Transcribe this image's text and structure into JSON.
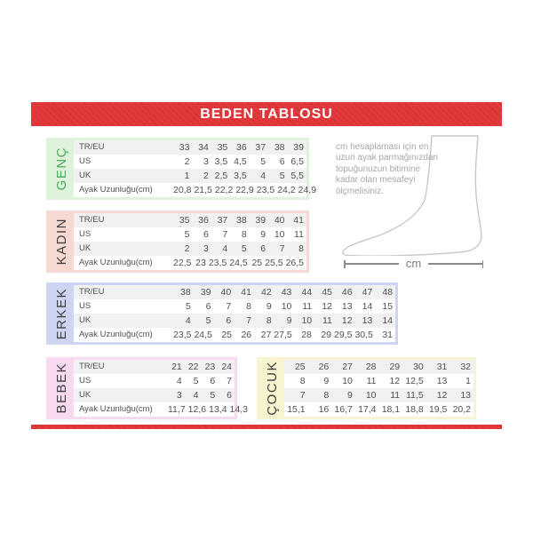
{
  "header": {
    "title": "BEDEN TABLOSU",
    "bar_color": "#e2393d"
  },
  "colors": {
    "row_stripe": "#f1f1f1",
    "table_text": "#4f4f4f",
    "genc_accent": "#def2dc",
    "genc_label": "#4bab5b",
    "kadin_accent": "#f8d9d2",
    "erkek_accent": "#cdd5f2",
    "bebek_accent": "#f7d9f0",
    "cocuk_accent": "#f9f4d0",
    "dark_label": "#3f3f3f"
  },
  "info": {
    "text": "cm hesaplaması için en\nuzun ayak parmağınızdan\ntopuğunuzun bitimine\nkadar olan mesafeyi\nölçmelisiniz.",
    "unit_label": "cm",
    "foot_icon": "foot-outline-icon"
  },
  "tables": {
    "genc": {
      "label": "GENÇ",
      "accent": "#def2dc",
      "label_color": "#4bab5b",
      "rows": [
        {
          "label": "TR/EU",
          "values": [
            "33",
            "34",
            "35",
            "36",
            "37",
            "38",
            "39"
          ]
        },
        {
          "label": "US",
          "values": [
            "2",
            "3",
            "3,5",
            "4,5",
            "5",
            "6",
            "6,5"
          ]
        },
        {
          "label": "UK",
          "values": [
            "1",
            "2",
            "2,5",
            "3,5",
            "4",
            "5",
            "5,5"
          ]
        },
        {
          "label": "Ayak Uzunluğu(cm)",
          "values": [
            "20,8",
            "21,5",
            "22,2",
            "22,9",
            "23,5",
            "24,2",
            "24,9"
          ]
        }
      ]
    },
    "kadin": {
      "label": "KADIN",
      "accent": "#f8d9d2",
      "label_color": "#3f3f3f",
      "rows": [
        {
          "label": "TR/EU",
          "values": [
            "35",
            "36",
            "37",
            "38",
            "39",
            "40",
            "41"
          ]
        },
        {
          "label": "US",
          "values": [
            "5",
            "6",
            "7",
            "8",
            "9",
            "10",
            "11"
          ]
        },
        {
          "label": "UK",
          "values": [
            "2",
            "3",
            "4",
            "5",
            "6",
            "7",
            "8"
          ]
        },
        {
          "label": "Ayak Uzunluğu(cm)",
          "values": [
            "22,5",
            "23",
            "23,5",
            "24,5",
            "25",
            "25,5",
            "26,5"
          ]
        }
      ]
    },
    "erkek": {
      "label": "ERKEK",
      "accent": "#cdd5f2",
      "label_color": "#3f3f3f",
      "rows": [
        {
          "label": "TR/EU",
          "values": [
            "38",
            "39",
            "40",
            "41",
            "42",
            "43",
            "44",
            "45",
            "46",
            "47",
            "48"
          ]
        },
        {
          "label": "US",
          "values": [
            "5",
            "6",
            "7",
            "8",
            "9",
            "10",
            "11",
            "12",
            "13",
            "14",
            "15"
          ]
        },
        {
          "label": "UK",
          "values": [
            "4",
            "5",
            "6",
            "7",
            "8",
            "9",
            "10",
            "11",
            "12",
            "13",
            "14"
          ]
        },
        {
          "label": "Ayak Uzunluğu(cm)",
          "values": [
            "23,5",
            "24,5",
            "25",
            "26",
            "27",
            "27,5",
            "28",
            "29",
            "29,5",
            "30,5",
            "31"
          ]
        }
      ]
    },
    "bebek": {
      "label": "BEBEK",
      "accent": "#f7d9f0",
      "label_color": "#3f3f3f",
      "rows": [
        {
          "label": "TR/EU",
          "values": [
            "21",
            "22",
            "23",
            "24"
          ]
        },
        {
          "label": "US",
          "values": [
            "4",
            "5",
            "6",
            "7"
          ]
        },
        {
          "label": "UK",
          "values": [
            "3",
            "4",
            "5",
            "6"
          ]
        },
        {
          "label": "Ayak Uzunluğu(cm)",
          "values": [
            "11,7",
            "12,6",
            "13,4",
            "14,3"
          ]
        }
      ]
    },
    "cocuk": {
      "label": "ÇOCUK",
      "accent": "#f9f4d0",
      "label_color": "#3f3f3f",
      "rows": [
        {
          "values": [
            "25",
            "26",
            "27",
            "28",
            "29",
            "30",
            "31",
            "32"
          ]
        },
        {
          "values": [
            "8",
            "9",
            "10",
            "11",
            "12",
            "12,5",
            "13",
            "1"
          ]
        },
        {
          "values": [
            "7",
            "8",
            "9",
            "10",
            "11",
            "11,5",
            "12",
            "13"
          ]
        },
        {
          "values": [
            "15,1",
            "16",
            "16,7",
            "17,4",
            "18,1",
            "18,8",
            "19,5",
            "20,2"
          ]
        }
      ]
    }
  }
}
